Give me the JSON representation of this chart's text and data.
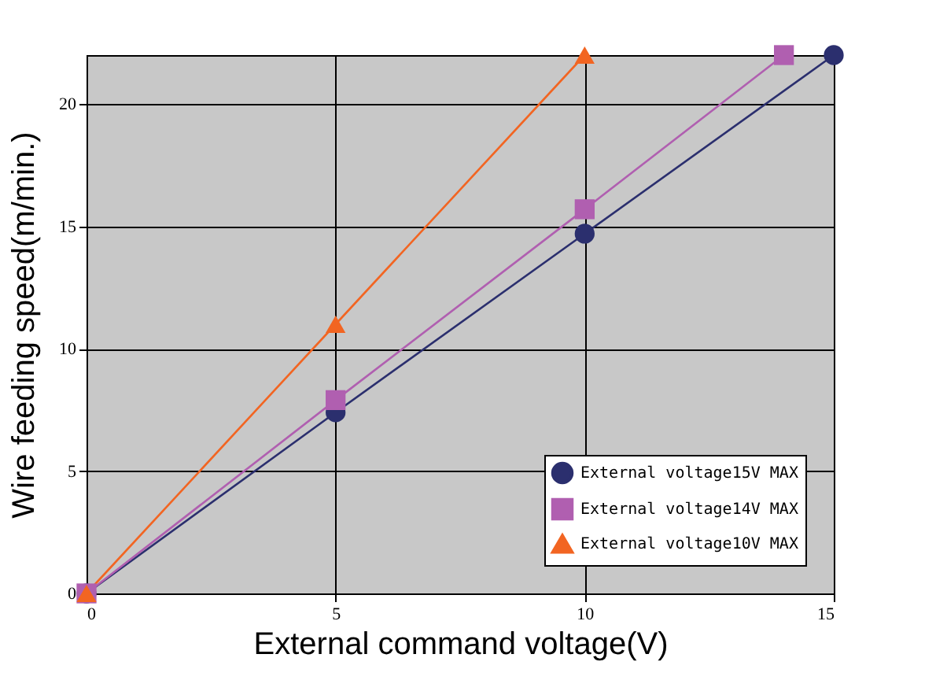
{
  "chart_data": {
    "type": "line",
    "xlabel": "External command voltage(V)",
    "ylabel": "Wire feeding speed(m/min.)",
    "xlim": [
      0,
      15
    ],
    "xticks": [
      0,
      5,
      10,
      15
    ],
    "ylim": [
      0,
      22
    ],
    "yticks": [
      0,
      5,
      10,
      15,
      20
    ],
    "grid": true,
    "legend": "bottom right",
    "line_style": "solid",
    "series": [
      {
        "name": "External voltage15V MAX",
        "color": "#2b2f6e",
        "marker": "circle",
        "x": [
          0,
          5,
          10,
          15
        ],
        "values": [
          0,
          7.4,
          14.7,
          22
        ]
      },
      {
        "name": "External voltage14V MAX",
        "color": "#b05fb0",
        "marker": "square",
        "x": [
          0,
          5,
          10,
          14
        ],
        "values": [
          0,
          7.9,
          15.7,
          22
        ]
      },
      {
        "name": "External voltage10V MAX",
        "color": "#f26522",
        "marker": "triangle",
        "x": [
          0,
          5,
          10
        ],
        "values": [
          0,
          11,
          22
        ]
      }
    ]
  }
}
